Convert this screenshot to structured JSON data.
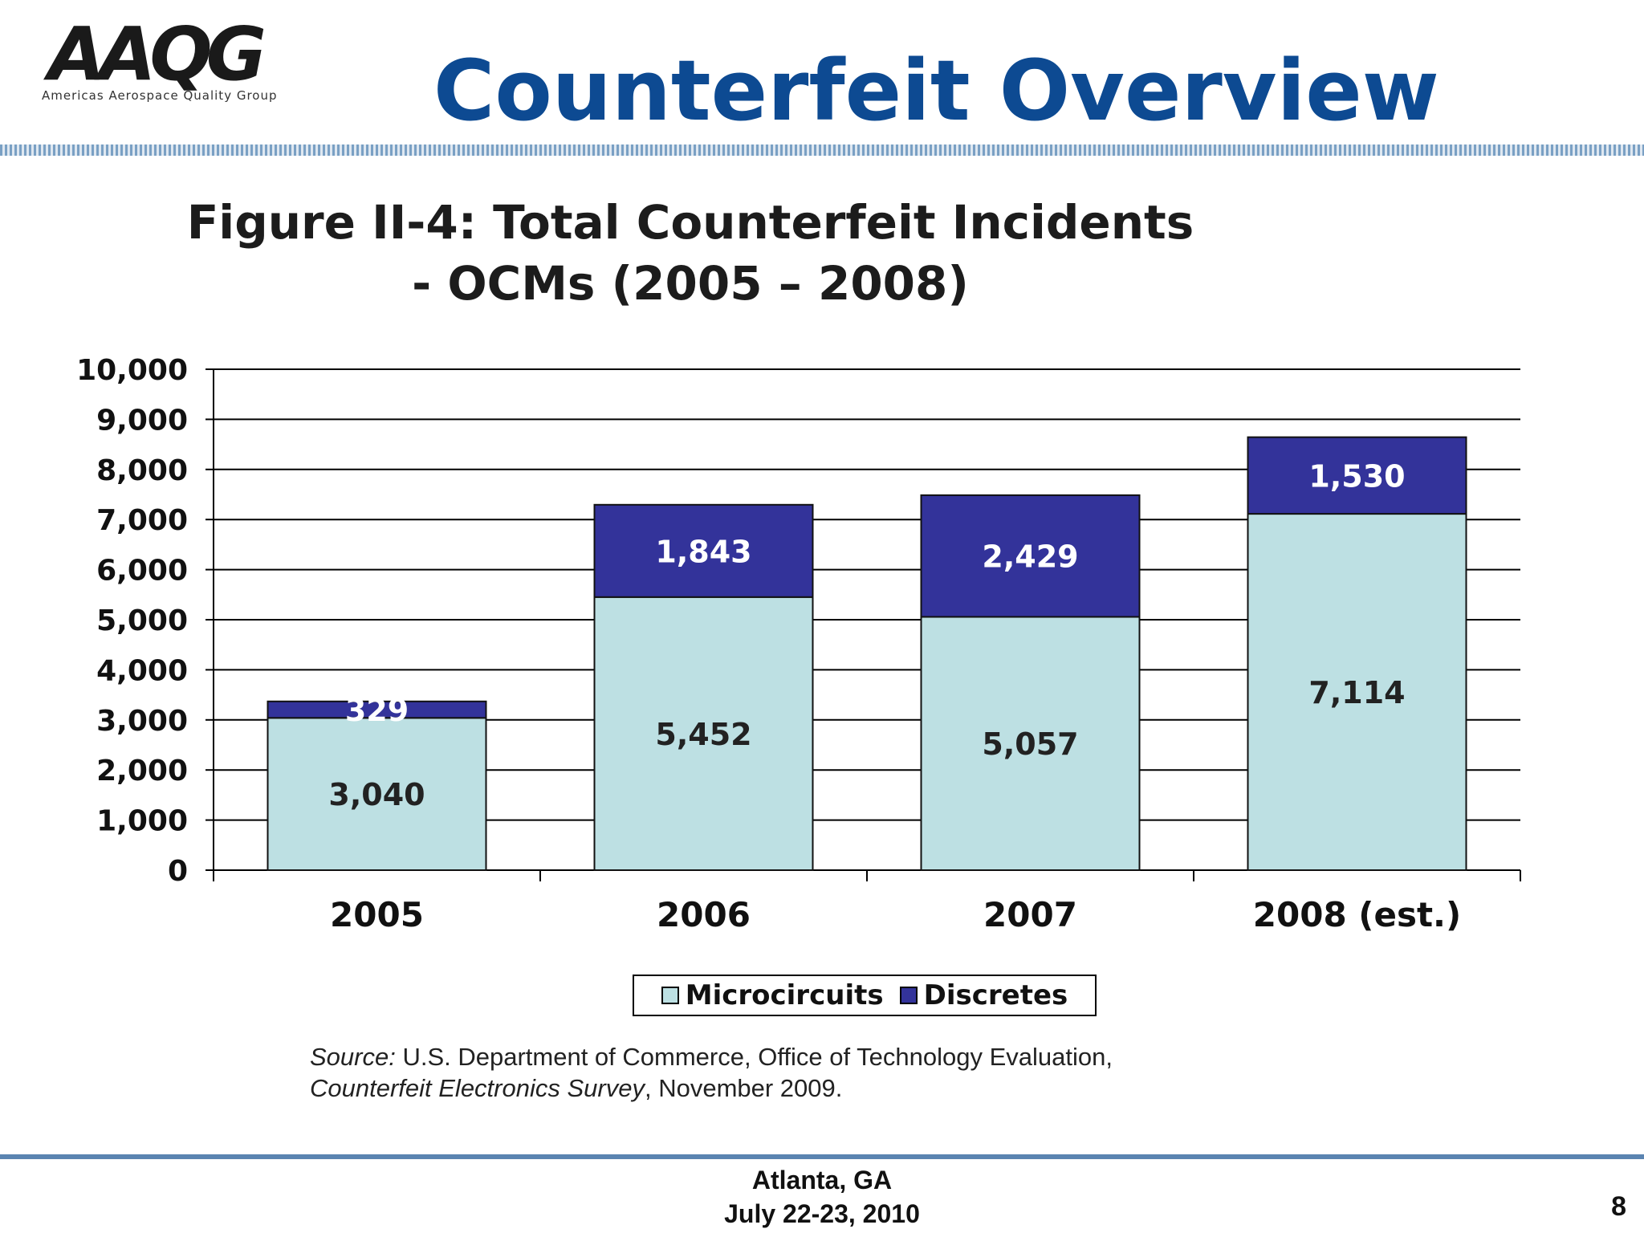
{
  "header": {
    "logo_text": "AAQG",
    "logo_subtitle": "Americas Aerospace Quality Group",
    "title": "Counterfeit Overview"
  },
  "figure": {
    "title_line1": "Figure II-4: Total Counterfeit Incidents",
    "title_line2": "- OCMs (2005 – 2008)",
    "source_label": "Source:",
    "source_text1": " U.S. Department of Commerce, Office of Technology Evaluation,",
    "source_title": "Counterfeit Electronics Survey",
    "source_text2": ", November 2009."
  },
  "chart_data": {
    "type": "bar",
    "stacked": true,
    "categories": [
      "2005",
      "2006",
      "2007",
      "2008 (est.)"
    ],
    "series": [
      {
        "name": "Microcircuits",
        "values": [
          3040,
          5452,
          5057,
          7114
        ],
        "labels": [
          "3,040",
          "5,452",
          "5,057",
          "7,114"
        ],
        "color": "#bde0e3"
      },
      {
        "name": "Discretes",
        "values": [
          329,
          1843,
          2429,
          1530
        ],
        "labels": [
          "329",
          "1,843",
          "2,429",
          "1,530"
        ],
        "color": "#33339a"
      }
    ],
    "ylim": [
      0,
      10000
    ],
    "yticks": [
      0,
      1000,
      2000,
      3000,
      4000,
      5000,
      6000,
      7000,
      8000,
      9000,
      10000
    ],
    "ytick_labels": [
      "0",
      "1,000",
      "2,000",
      "3,000",
      "4,000",
      "5,000",
      "6,000",
      "7,000",
      "8,000",
      "9,000",
      "10,000"
    ],
    "grid": true,
    "legend_position": "bottom"
  },
  "footer": {
    "location": "Atlanta, GA",
    "date": "July 22-23, 2010",
    "page": "8"
  }
}
